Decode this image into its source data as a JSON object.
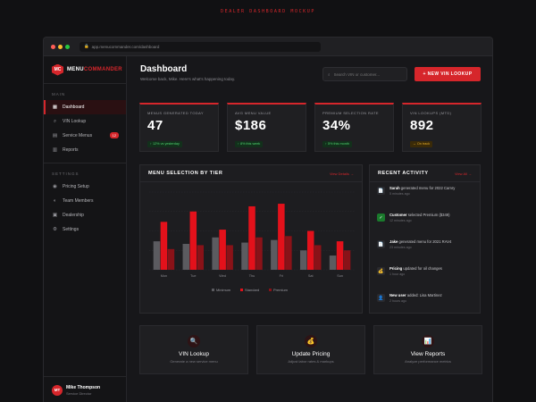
{
  "mockup_label": "DEALER DASHBOARD MOCKUP",
  "browser": {
    "url": "app.menucommander.com/dashboard"
  },
  "brand": {
    "badge": "MC",
    "name_a": "MENU",
    "name_b": "COMMANDER"
  },
  "sidebar": {
    "section_main": "MAIN",
    "main_items": [
      {
        "label": "Dashboard",
        "icon": "dashboard-icon"
      },
      {
        "label": "VIN Lookup",
        "icon": "search-icon"
      },
      {
        "label": "Service Menus",
        "icon": "document-icon",
        "badge": "12"
      },
      {
        "label": "Reports",
        "icon": "chart-icon"
      }
    ],
    "section_settings": "SETTINGS",
    "settings_items": [
      {
        "label": "Pricing Setup",
        "icon": "coin-icon"
      },
      {
        "label": "Team Members",
        "icon": "users-icon"
      },
      {
        "label": "Dealership",
        "icon": "building-icon"
      },
      {
        "label": "Settings",
        "icon": "gear-icon"
      }
    ],
    "user": {
      "initials": "MT",
      "name": "Mike Thompson",
      "role": "Service Director"
    }
  },
  "header": {
    "title": "Dashboard",
    "subtitle": "Welcome back, Mike. Here's what's happening today.",
    "search_placeholder": "Search VIN or customer...",
    "new_button": "+ NEW VIN LOOKUP"
  },
  "stats": [
    {
      "label": "MENUS GENERATED TODAY",
      "value": "47",
      "delta": "↑ 12% vs yesterday",
      "tone": "up"
    },
    {
      "label": "AVG MENU VALUE",
      "value": "$186",
      "delta": "↑ 8% this week",
      "tone": "up"
    },
    {
      "label": "PREMIUM SELECTION RATE",
      "value": "34%",
      "delta": "↑ 5% this month",
      "tone": "up"
    },
    {
      "label": "VIN LOOKUPS (MTD)",
      "value": "892",
      "delta": "→ On track",
      "tone": "warn"
    }
  ],
  "chart_card": {
    "title": "MENU SELECTION BY TIER",
    "link": "View Details →"
  },
  "chart_data": {
    "type": "bar",
    "categories": [
      "Mon",
      "Tue",
      "Wed",
      "Thu",
      "Fri",
      "Sat",
      "Sun"
    ],
    "series": [
      {
        "name": "Minimum",
        "values": [
          22,
          20,
          25,
          21,
          23,
          15,
          11
        ]
      },
      {
        "name": "Standard",
        "values": [
          37,
          45,
          31,
          49,
          51,
          30,
          22
        ]
      },
      {
        "name": "Premium",
        "values": [
          16,
          19,
          19,
          25,
          26,
          19,
          15
        ]
      }
    ],
    "ylim": [
      0,
      60
    ],
    "legend": "bottom-center",
    "colors": [
      "#5b5b60",
      "#e3111b",
      "#8a1218"
    ]
  },
  "activity": {
    "title": "RECENT ACTIVITY",
    "link": "View All →",
    "items": [
      {
        "icon": "document-icon",
        "bold": "Sarah",
        "text": " generated menu for 2022 Camry",
        "time": "5 minutes ago"
      },
      {
        "icon": "check-icon",
        "bold": "Customer",
        "text": " selected Premium ($349)",
        "time": "12 minutes ago"
      },
      {
        "icon": "document-icon",
        "bold": "Jake",
        "text": " generated menu for 2021 RAV4",
        "time": "23 minutes ago"
      },
      {
        "icon": "coin-icon",
        "bold": "Pricing",
        "text": " updated for oil changes",
        "time": "1 hour ago"
      },
      {
        "icon": "user-icon",
        "bold": "New user",
        "text": " added: Lisa Martinez",
        "time": "2 hours ago"
      }
    ]
  },
  "actions": [
    {
      "icon": "search-icon",
      "title": "VIN Lookup",
      "sub": "Generate a new service menu"
    },
    {
      "icon": "coin-icon",
      "title": "Update Pricing",
      "sub": "Adjust labor rates & markups"
    },
    {
      "icon": "chart-icon",
      "title": "View Reports",
      "sub": "Analyze performance metrics"
    }
  ]
}
